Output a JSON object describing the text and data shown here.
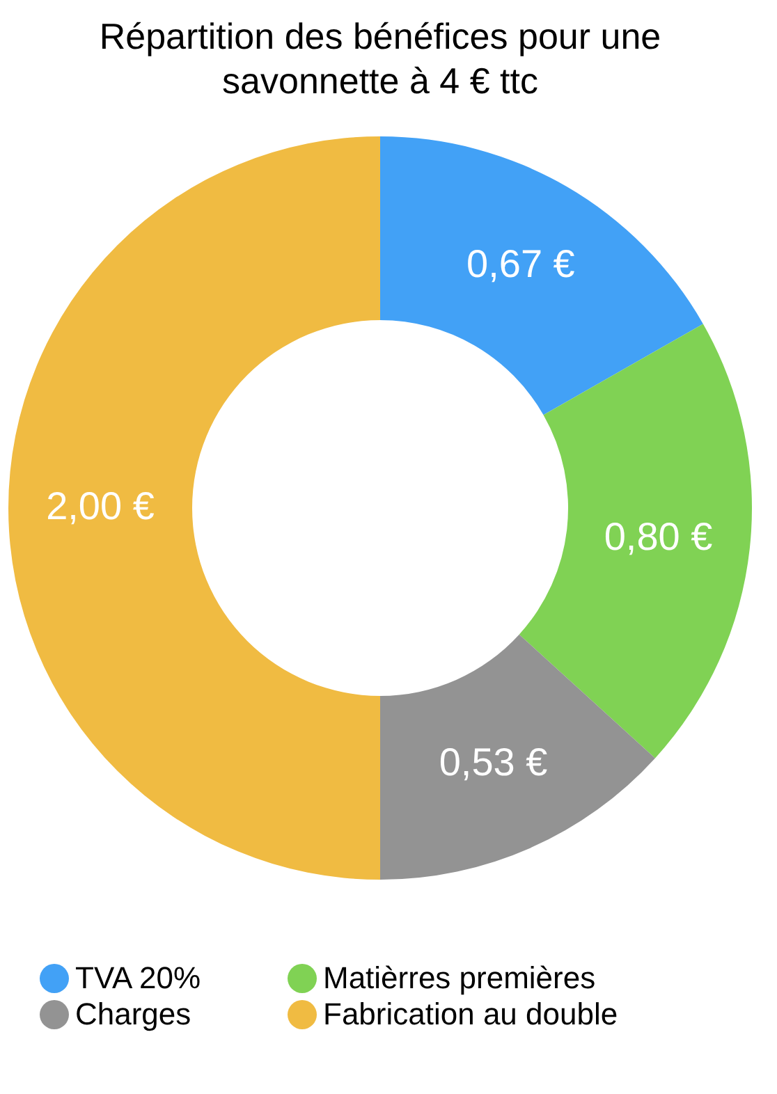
{
  "chart_data": {
    "type": "donut",
    "title": "Répartition des bénéfices pour une savonnette à 4 € ttc",
    "categories": [
      "TVA 20%",
      "Matièrres premières",
      "Charges",
      "Fabrication au double"
    ],
    "values": [
      0.67,
      0.8,
      0.53,
      2.0
    ],
    "colors": [
      "#42a1f6",
      "#80d254",
      "#939393",
      "#f0bb42"
    ],
    "value_labels": [
      "0,67 €",
      "0,80 €",
      "0,53 €",
      "2,00 €"
    ],
    "legend": "bottom"
  }
}
